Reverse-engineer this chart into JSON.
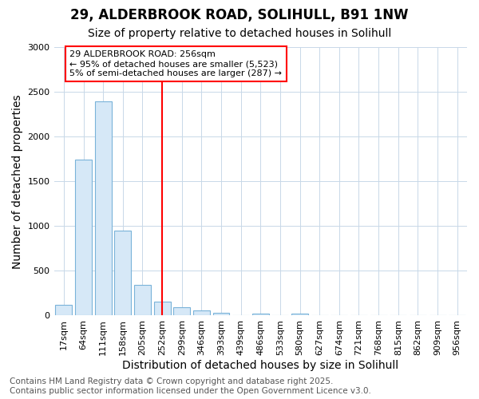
{
  "title1": "29, ALDERBROOK ROAD, SOLIHULL, B91 1NW",
  "title2": "Size of property relative to detached houses in Solihull",
  "xlabel": "Distribution of detached houses by size in Solihull",
  "ylabel": "Number of detached properties",
  "bar_color": "#d6e8f7",
  "bar_edge_color": "#7ab3d9",
  "grid_color": "#c8d8e8",
  "vline_color": "red",
  "vline_x": 5,
  "annotation_text": "29 ALDERBROOK ROAD: 256sqm\n← 95% of detached houses are smaller (5,523)\n5% of semi-detached houses are larger (287) →",
  "annotation_box_color": "red",
  "categories": [
    "17sqm",
    "64sqm",
    "111sqm",
    "158sqm",
    "205sqm",
    "252sqm",
    "299sqm",
    "346sqm",
    "393sqm",
    "439sqm",
    "486sqm",
    "533sqm",
    "580sqm",
    "627sqm",
    "674sqm",
    "721sqm",
    "768sqm",
    "815sqm",
    "862sqm",
    "909sqm",
    "956sqm"
  ],
  "values": [
    120,
    1740,
    2395,
    950,
    340,
    155,
    95,
    55,
    30,
    0,
    20,
    0,
    20,
    0,
    0,
    0,
    0,
    0,
    0,
    0,
    0
  ],
  "ylim": [
    0,
    3000
  ],
  "yticks": [
    0,
    500,
    1000,
    1500,
    2000,
    2500,
    3000
  ],
  "footnote": "Contains HM Land Registry data © Crown copyright and database right 2025.\nContains public sector information licensed under the Open Government Licence v3.0.",
  "background_color": "#ffffff",
  "title_fontsize": 12,
  "subtitle_fontsize": 10,
  "axis_fontsize": 10,
  "tick_fontsize": 8,
  "footnote_fontsize": 7.5
}
